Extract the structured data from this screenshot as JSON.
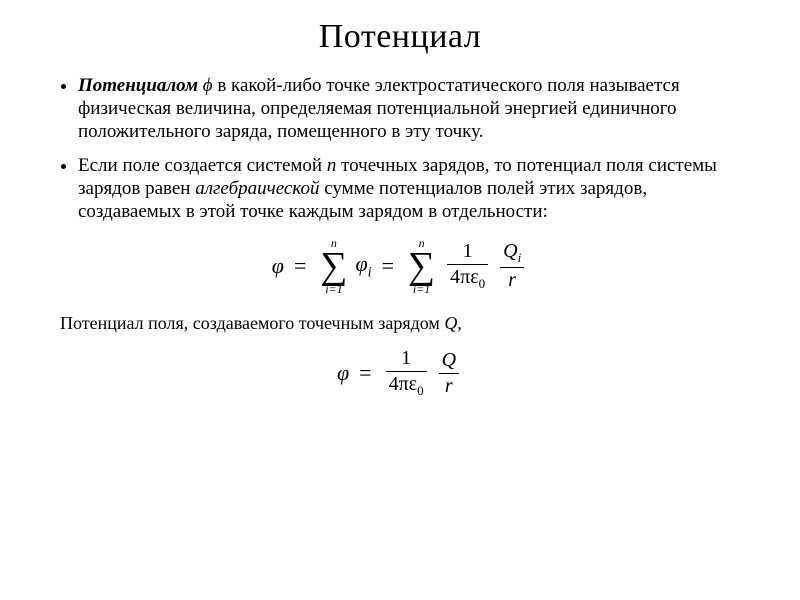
{
  "title": "Потенциал",
  "bullets": [
    {
      "lead_bold_ital": "Потенциалом",
      "lead_symbol": " ϕ ",
      "rest": "в какой-либо точке электростатического поля называется физическая величина, определяемая потенциальной энергией единичного положительного заряда, помещенного в эту точку."
    },
    {
      "t1": "Если поле создается системой ",
      "n_ital": "n",
      "t2": " точечных зарядов, то потенциал поля системы зарядов равен ",
      "alg_ital": "алгебраической",
      "t3": " сумме потенциалов полей этих зарядов, создаваемых в этой точке каждым зарядом в отдельности:"
    }
  ],
  "formula1": {
    "phi": "φ",
    "eq": "=",
    "sum_top": "n",
    "sum_bottom": "i=1",
    "sigma": "∑",
    "phi_i": "φ",
    "sub_i": "i",
    "frac1_num": "1",
    "four_pi_eps": "4πε",
    "zero": "0",
    "Q": "Q",
    "r": "r"
  },
  "caption": {
    "text": "Потенциал поля, создаваемого точечным зарядом ",
    "Q_ital": "Q,"
  },
  "formula2": {
    "phi": "φ",
    "eq": "=",
    "one": "1",
    "four_pi_eps": "4πε",
    "zero": "0",
    "Q": "Q",
    "r": "r"
  }
}
